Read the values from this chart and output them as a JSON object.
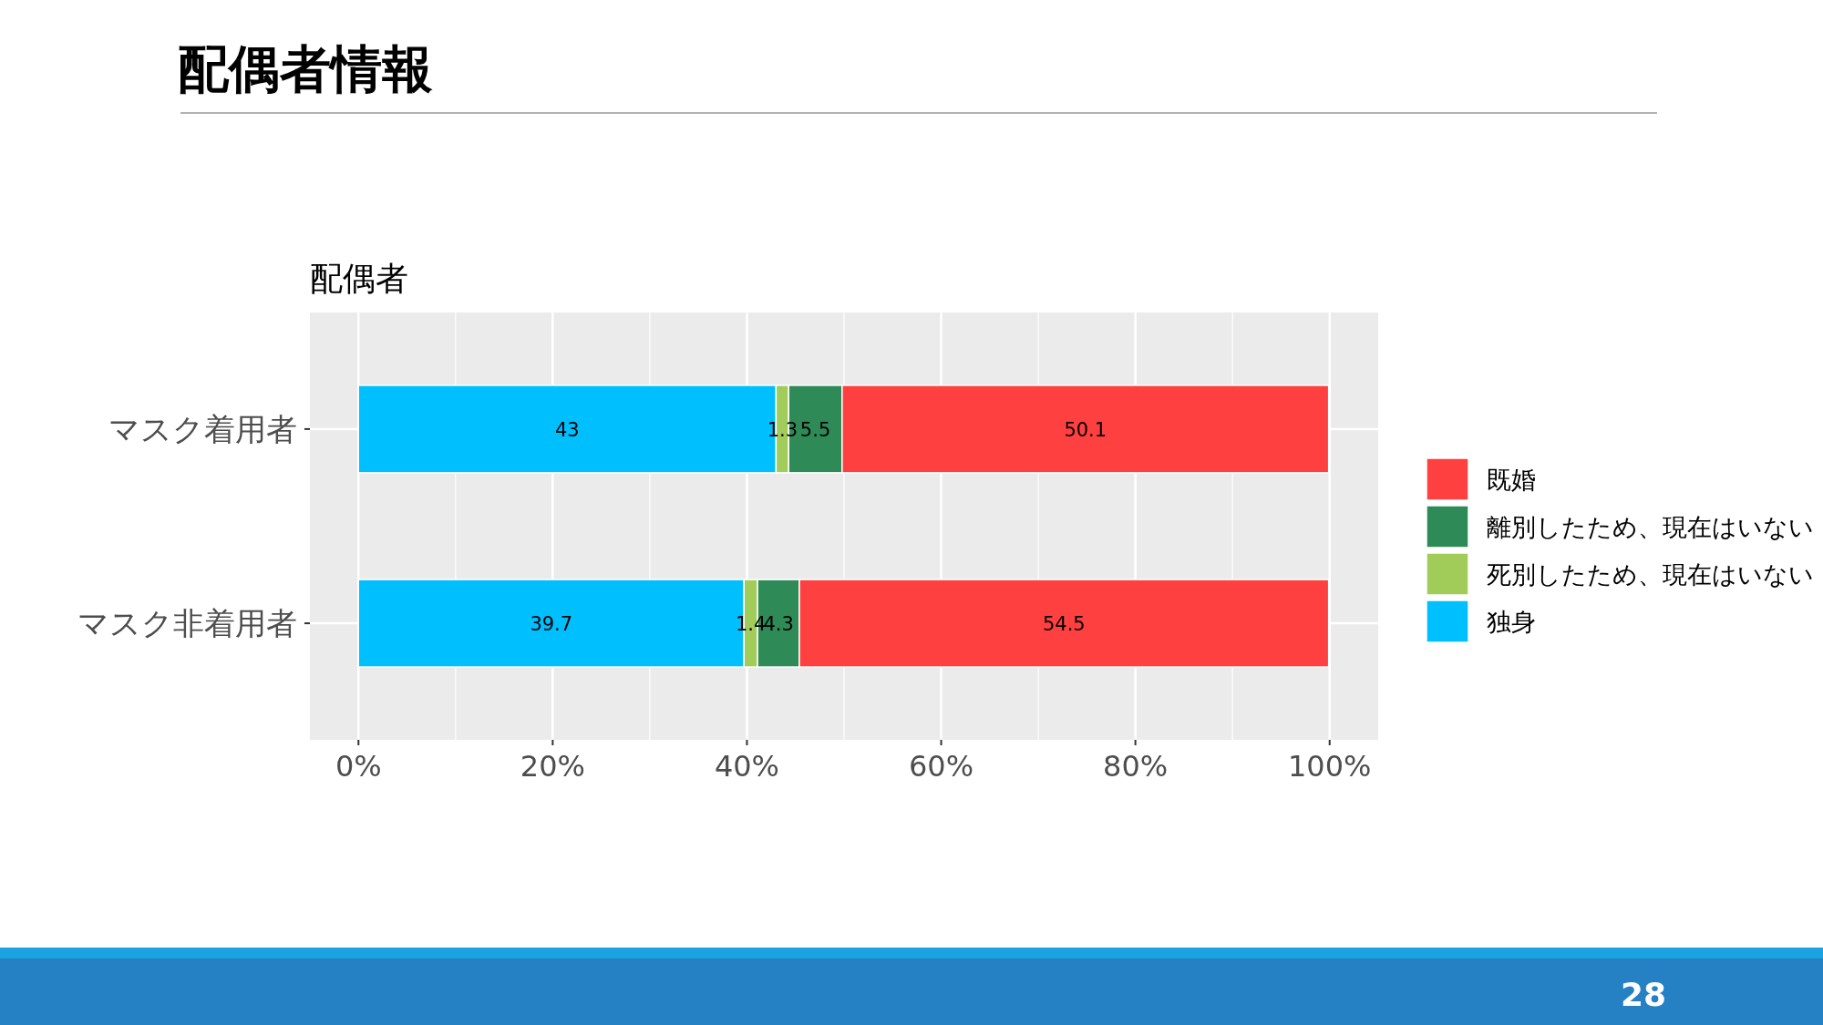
{
  "chart_data": {
    "type": "bar",
    "title": "配偶者情報",
    "subtitle": "配偶者",
    "annotations": [
      "28"
    ],
    "categories": [
      "マスク着用者",
      "マスク非着用者"
    ],
    "orientation": "horizontal",
    "stacked": true,
    "data_labels": true,
    "grid": true,
    "legend": "right",
    "xlim": [
      -5,
      105
    ],
    "xticks": [
      {
        "value": 0,
        "label": "0%"
      },
      {
        "value": 20,
        "label": "20%"
      },
      {
        "value": 40,
        "label": "40%"
      },
      {
        "value": 60,
        "label": "60%"
      },
      {
        "value": 80,
        "label": "80%"
      },
      {
        "value": 100,
        "label": "100%"
      }
    ],
    "series": [
      {
        "name": "独身",
        "color": "#00bfff",
        "values": [
          43,
          39.7
        ]
      },
      {
        "name": "死別したため、現在はいない",
        "color": "#a1cc5a",
        "values": [
          1.3,
          1.4
        ]
      },
      {
        "name": "離別したため、現在はいない",
        "color": "#2e8b57",
        "values": [
          5.5,
          4.3
        ]
      },
      {
        "name": "既婚",
        "color": "#ff4040",
        "values": [
          50.1,
          54.5
        ]
      }
    ]
  }
}
